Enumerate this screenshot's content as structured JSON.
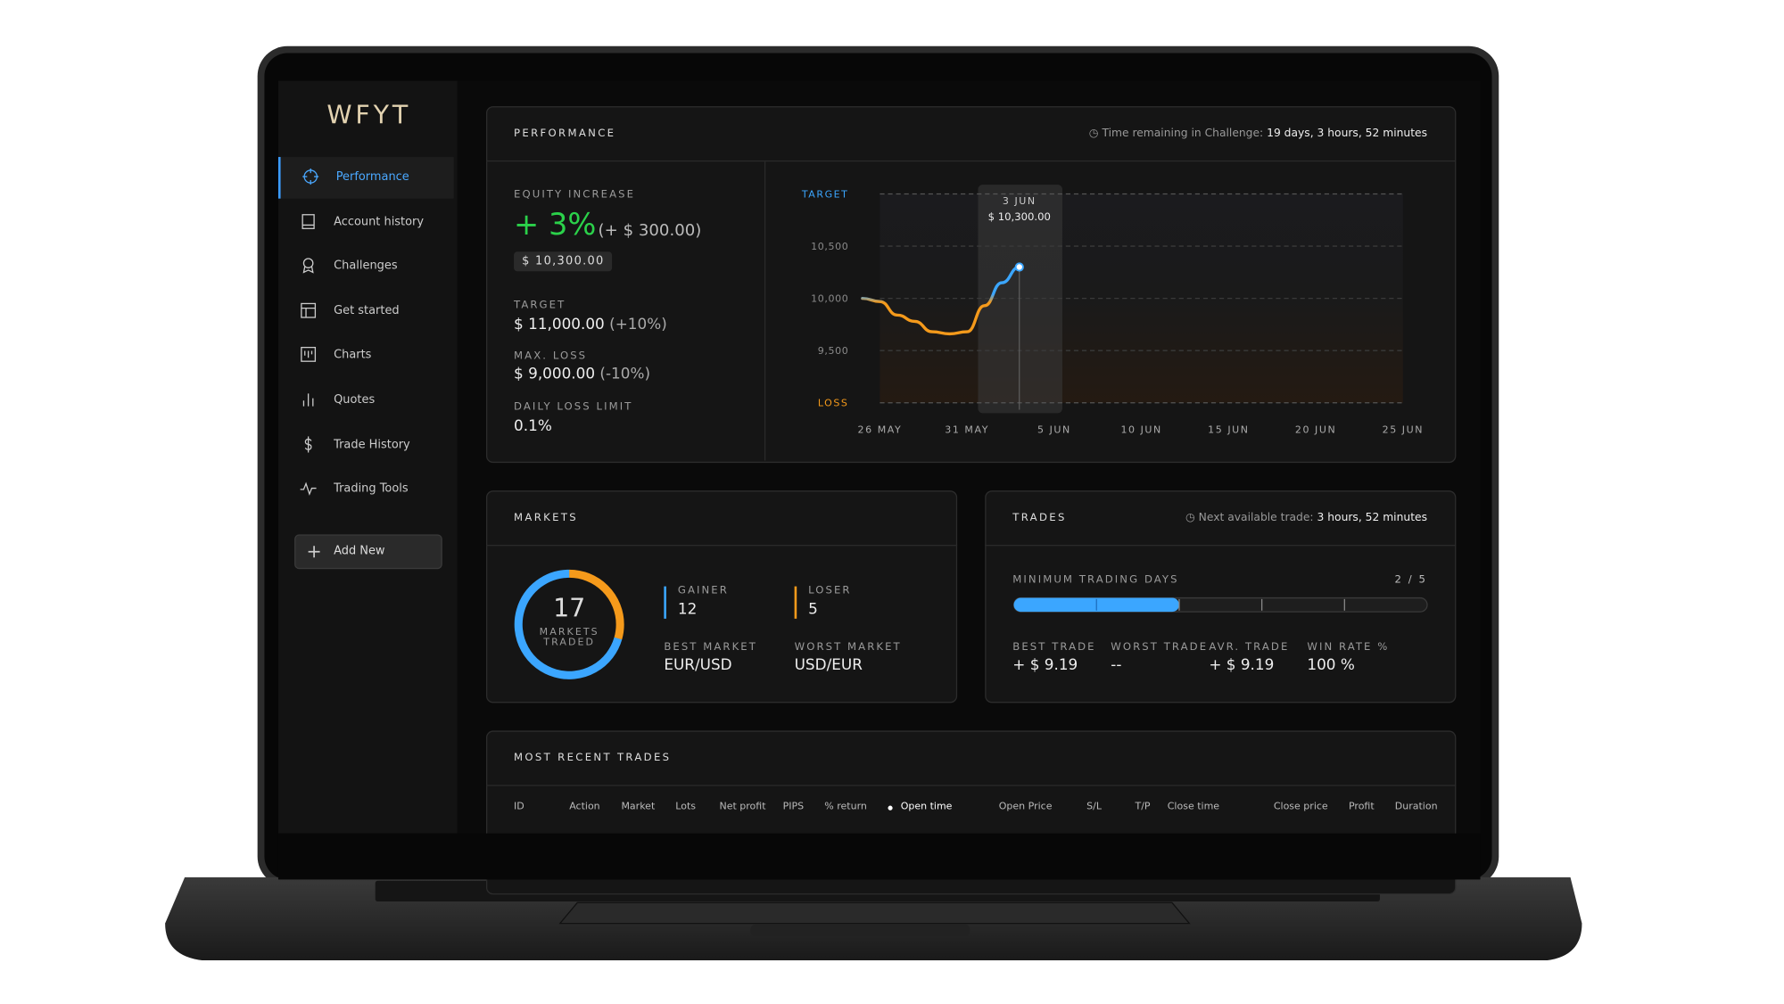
{
  "sidebar": {
    "logo": "WFYT",
    "nav": [
      "Performance",
      "Account history",
      "Challenges",
      "Get started",
      "Charts",
      "Quotes",
      "Trade History",
      "Trading Tools"
    ],
    "active": 0,
    "add_button": "Add New"
  },
  "performance": {
    "title": "PERFORMANCE",
    "time_label": "Time remaining in Challenge:",
    "time_value": "19 days, 3 hours, 52 minutes",
    "equity_label": "EQUITY INCREASE",
    "equity_pct": "+ 3%",
    "equity_abs": "(+ $ 300.00)",
    "balance": "$ 10,300.00",
    "target_label": "TARGET",
    "target_value": "$ 11,000.00",
    "target_pct": "(+10%)",
    "max_loss_label": "MAX. LOSS",
    "max_loss_value": "$ 9,000.00",
    "max_loss_pct": "(-10%)",
    "daily_label": "DAILY LOSS LIMIT",
    "daily_value": "0.1%"
  },
  "chart_data": {
    "type": "line",
    "ylim": [
      9000,
      11000
    ],
    "yticks": [
      {
        "value": 9000,
        "label": "LOSS"
      },
      {
        "value": 9500,
        "label": "9,500"
      },
      {
        "value": 10000,
        "label": "10,000"
      },
      {
        "value": 10500,
        "label": "10,500"
      },
      {
        "value": 11000,
        "label": "TARGET"
      }
    ],
    "xticks": [
      "26 MAY",
      "31 MAY",
      "5 JUN",
      "10 JUN",
      "15 JUN",
      "20 JUN",
      "25 JUN"
    ],
    "values": [
      10000,
      9970,
      9840,
      9780,
      9680,
      9660,
      9680,
      9930,
      10150,
      10300
    ],
    "colors": {
      "up": "#3ba6ff",
      "down": "#f59a1b"
    },
    "tooltip": {
      "label": "3 JUN",
      "value": "$ 10,300.00"
    }
  },
  "markets": {
    "title": "MARKETS",
    "total": 17,
    "total_label": "MARKETS TRADED",
    "gainer_label": "GAINER",
    "gainer": 12,
    "loser_label": "LOSER",
    "loser": 5,
    "best_label": "BEST MARKET",
    "best": "EUR/USD",
    "worst_label": "WORST MARKET",
    "worst": "USD/EUR"
  },
  "trades": {
    "title": "TRADES",
    "next_label": "Next available trade:",
    "next_value": "3 hours, 52 minutes",
    "min_days_label": "MINIMUM TRADING DAYS",
    "min_days": {
      "completed": 2,
      "separator": "/",
      "required": 5
    },
    "stats": [
      {
        "label": "BEST TRADE",
        "value": "+ $ 9.19"
      },
      {
        "label": "WORST TRADE",
        "value": "--"
      },
      {
        "label": "AVR. TRADE",
        "value": "+ $ 9.19"
      },
      {
        "label": "WIN RATE %",
        "value": "100 %"
      }
    ]
  },
  "recent": {
    "title": "MOST RECENT TRADES",
    "columns": [
      "ID",
      "Action",
      "Market",
      "Lots",
      "Net profit",
      "PIPS",
      "% return",
      "Open time",
      "Open Price",
      "S/L",
      "T/P",
      "Close time",
      "Close price",
      "Profit",
      "Duration"
    ]
  }
}
